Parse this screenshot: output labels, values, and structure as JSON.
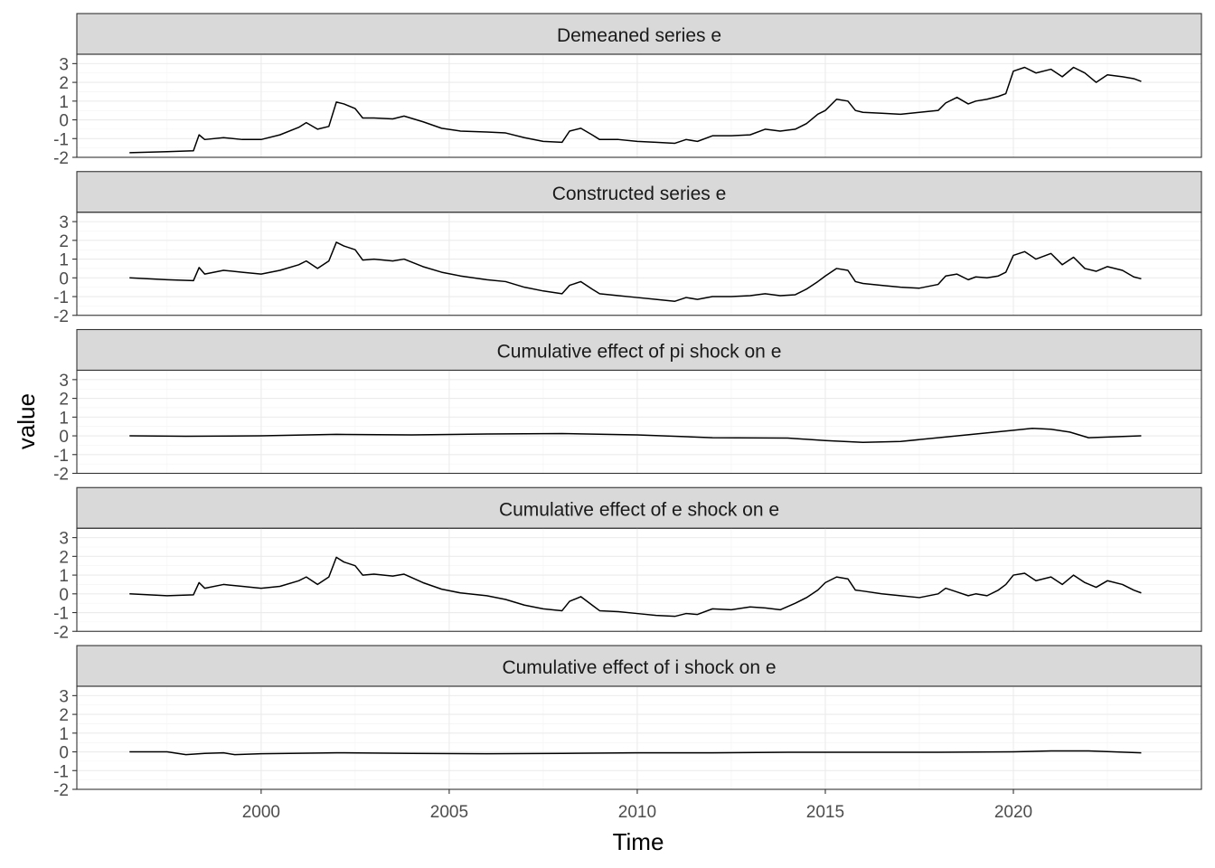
{
  "chart_data": {
    "type": "line",
    "facet_layout": "stacked",
    "xlabel": "Time",
    "ylabel": "value",
    "xlim": [
      1995.1,
      2025.0
    ],
    "ylim": [
      -2,
      3.5
    ],
    "x_ticks": [
      2000,
      2005,
      2010,
      2015,
      2020
    ],
    "y_ticks": [
      -2,
      -1,
      0,
      1,
      2,
      3
    ],
    "grid": true,
    "theme": "bw",
    "panels": [
      {
        "title": "Demeaned series  e",
        "x": [
          1996.5,
          1997.5,
          1998.2,
          1998.35,
          1998.5,
          1999.0,
          1999.5,
          2000.0,
          2000.5,
          2001.0,
          2001.2,
          2001.5,
          2001.8,
          2002.0,
          2002.2,
          2002.5,
          2002.7,
          2003.0,
          2003.5,
          2003.8,
          2004.3,
          2004.8,
          2005.3,
          2006.0,
          2006.5,
          2007.0,
          2007.5,
          2008.0,
          2008.2,
          2008.5,
          2008.8,
          2009.0,
          2009.5,
          2010.0,
          2010.5,
          2011.0,
          2011.3,
          2011.6,
          2012.0,
          2012.5,
          2013.0,
          2013.4,
          2013.8,
          2014.2,
          2014.5,
          2014.8,
          2015.0,
          2015.3,
          2015.6,
          2015.8,
          2016.0,
          2016.5,
          2017.0,
          2017.5,
          2018.0,
          2018.2,
          2018.5,
          2018.8,
          2019.0,
          2019.3,
          2019.6,
          2019.8,
          2020.0,
          2020.3,
          2020.6,
          2021.0,
          2021.3,
          2021.6,
          2021.9,
          2022.2,
          2022.5,
          2022.9,
          2023.2,
          2023.4
        ],
        "values": [
          -1.75,
          -1.7,
          -1.65,
          -0.8,
          -1.05,
          -0.95,
          -1.05,
          -1.05,
          -0.8,
          -0.4,
          -0.15,
          -0.5,
          -0.35,
          0.95,
          0.85,
          0.6,
          0.1,
          0.1,
          0.05,
          0.2,
          -0.1,
          -0.45,
          -0.6,
          -0.65,
          -0.7,
          -0.95,
          -1.15,
          -1.2,
          -0.6,
          -0.45,
          -0.8,
          -1.05,
          -1.05,
          -1.15,
          -1.2,
          -1.25,
          -1.05,
          -1.15,
          -0.85,
          -0.85,
          -0.8,
          -0.5,
          -0.6,
          -0.5,
          -0.2,
          0.3,
          0.5,
          1.1,
          1.0,
          0.5,
          0.4,
          0.35,
          0.3,
          0.4,
          0.5,
          0.9,
          1.2,
          0.85,
          1.0,
          1.1,
          1.25,
          1.4,
          2.6,
          2.8,
          2.5,
          2.7,
          2.3,
          2.8,
          2.5,
          2.0,
          2.4,
          2.3,
          2.2,
          2.05
        ]
      },
      {
        "title": "Constructed series  e",
        "x": [
          1996.5,
          1997.5,
          1998.2,
          1998.35,
          1998.5,
          1999.0,
          1999.5,
          2000.0,
          2000.5,
          2001.0,
          2001.2,
          2001.5,
          2001.8,
          2002.0,
          2002.2,
          2002.5,
          2002.7,
          2003.0,
          2003.5,
          2003.8,
          2004.3,
          2004.8,
          2005.3,
          2006.0,
          2006.5,
          2007.0,
          2007.5,
          2008.0,
          2008.2,
          2008.5,
          2008.8,
          2009.0,
          2009.5,
          2010.0,
          2010.5,
          2011.0,
          2011.3,
          2011.6,
          2012.0,
          2012.5,
          2013.0,
          2013.4,
          2013.8,
          2014.2,
          2014.5,
          2014.8,
          2015.0,
          2015.3,
          2015.6,
          2015.8,
          2016.0,
          2016.5,
          2017.0,
          2017.5,
          2018.0,
          2018.2,
          2018.5,
          2018.8,
          2019.0,
          2019.3,
          2019.6,
          2019.8,
          2020.0,
          2020.3,
          2020.6,
          2021.0,
          2021.3,
          2021.6,
          2021.9,
          2022.2,
          2022.5,
          2022.9,
          2023.2,
          2023.4
        ],
        "values": [
          0.0,
          -0.1,
          -0.15,
          0.55,
          0.2,
          0.4,
          0.3,
          0.2,
          0.4,
          0.7,
          0.9,
          0.5,
          0.9,
          1.9,
          1.7,
          1.5,
          0.95,
          1.0,
          0.9,
          1.0,
          0.6,
          0.3,
          0.1,
          -0.1,
          -0.2,
          -0.5,
          -0.7,
          -0.85,
          -0.4,
          -0.2,
          -0.6,
          -0.85,
          -0.95,
          -1.05,
          -1.15,
          -1.25,
          -1.05,
          -1.15,
          -1.0,
          -1.0,
          -0.95,
          -0.85,
          -0.95,
          -0.9,
          -0.6,
          -0.2,
          0.1,
          0.5,
          0.4,
          -0.2,
          -0.3,
          -0.4,
          -0.5,
          -0.55,
          -0.35,
          0.1,
          0.2,
          -0.1,
          0.05,
          0.0,
          0.1,
          0.3,
          1.2,
          1.4,
          1.0,
          1.3,
          0.7,
          1.1,
          0.5,
          0.35,
          0.6,
          0.4,
          0.05,
          -0.05
        ]
      },
      {
        "title": "Cumulative effect of  pi shock on  e",
        "x": [
          1996.5,
          1998.0,
          2000.0,
          2002.0,
          2004.0,
          2006.0,
          2008.0,
          2010.0,
          2012.0,
          2014.0,
          2015.0,
          2016.0,
          2017.0,
          2018.0,
          2019.0,
          2020.0,
          2020.5,
          2021.0,
          2021.5,
          2022.0,
          2023.4
        ],
        "values": [
          0.0,
          -0.02,
          0.0,
          0.08,
          0.05,
          0.1,
          0.12,
          0.05,
          -0.1,
          -0.12,
          -0.25,
          -0.35,
          -0.3,
          -0.1,
          0.1,
          0.3,
          0.4,
          0.35,
          0.2,
          -0.1,
          0.0
        ]
      },
      {
        "title": "Cumulative effect of  e shock on  e",
        "x": [
          1996.5,
          1997.5,
          1998.2,
          1998.35,
          1998.5,
          1999.0,
          1999.5,
          2000.0,
          2000.5,
          2001.0,
          2001.2,
          2001.5,
          2001.8,
          2002.0,
          2002.2,
          2002.5,
          2002.7,
          2003.0,
          2003.5,
          2003.8,
          2004.3,
          2004.8,
          2005.3,
          2006.0,
          2006.5,
          2007.0,
          2007.5,
          2008.0,
          2008.2,
          2008.5,
          2008.8,
          2009.0,
          2009.5,
          2010.0,
          2010.5,
          2011.0,
          2011.3,
          2011.6,
          2012.0,
          2012.5,
          2013.0,
          2013.4,
          2013.8,
          2014.2,
          2014.5,
          2014.8,
          2015.0,
          2015.3,
          2015.6,
          2015.8,
          2016.0,
          2016.5,
          2017.0,
          2017.5,
          2018.0,
          2018.2,
          2018.5,
          2018.8,
          2019.0,
          2019.3,
          2019.6,
          2019.8,
          2020.0,
          2020.3,
          2020.6,
          2021.0,
          2021.3,
          2021.6,
          2021.9,
          2022.2,
          2022.5,
          2022.9,
          2023.2,
          2023.4
        ],
        "values": [
          0.0,
          -0.1,
          -0.05,
          0.6,
          0.3,
          0.5,
          0.4,
          0.3,
          0.4,
          0.7,
          0.9,
          0.5,
          0.9,
          1.95,
          1.7,
          1.5,
          1.0,
          1.05,
          0.95,
          1.05,
          0.6,
          0.25,
          0.05,
          -0.1,
          -0.3,
          -0.6,
          -0.8,
          -0.9,
          -0.4,
          -0.15,
          -0.6,
          -0.9,
          -0.95,
          -1.05,
          -1.15,
          -1.2,
          -1.05,
          -1.1,
          -0.8,
          -0.85,
          -0.7,
          -0.75,
          -0.85,
          -0.5,
          -0.2,
          0.2,
          0.6,
          0.9,
          0.8,
          0.2,
          0.15,
          0.0,
          -0.1,
          -0.2,
          0.0,
          0.3,
          0.1,
          -0.1,
          0.0,
          -0.1,
          0.2,
          0.5,
          1.0,
          1.1,
          0.7,
          0.9,
          0.5,
          1.0,
          0.6,
          0.35,
          0.7,
          0.5,
          0.2,
          0.05
        ]
      },
      {
        "title": "Cumulative effect of  i shock on  e",
        "x": [
          1996.5,
          1997.5,
          1998.0,
          1998.5,
          1999.0,
          1999.3,
          2000.0,
          2002.0,
          2004.0,
          2006.0,
          2008.0,
          2010.0,
          2012.0,
          2014.0,
          2016.0,
          2018.0,
          2020.0,
          2021.0,
          2022.0,
          2023.4
        ],
        "values": [
          0.0,
          0.0,
          -0.15,
          -0.08,
          -0.05,
          -0.15,
          -0.1,
          -0.05,
          -0.08,
          -0.1,
          -0.08,
          -0.05,
          -0.05,
          -0.02,
          -0.02,
          -0.02,
          0.0,
          0.05,
          0.05,
          -0.05
        ]
      }
    ]
  }
}
